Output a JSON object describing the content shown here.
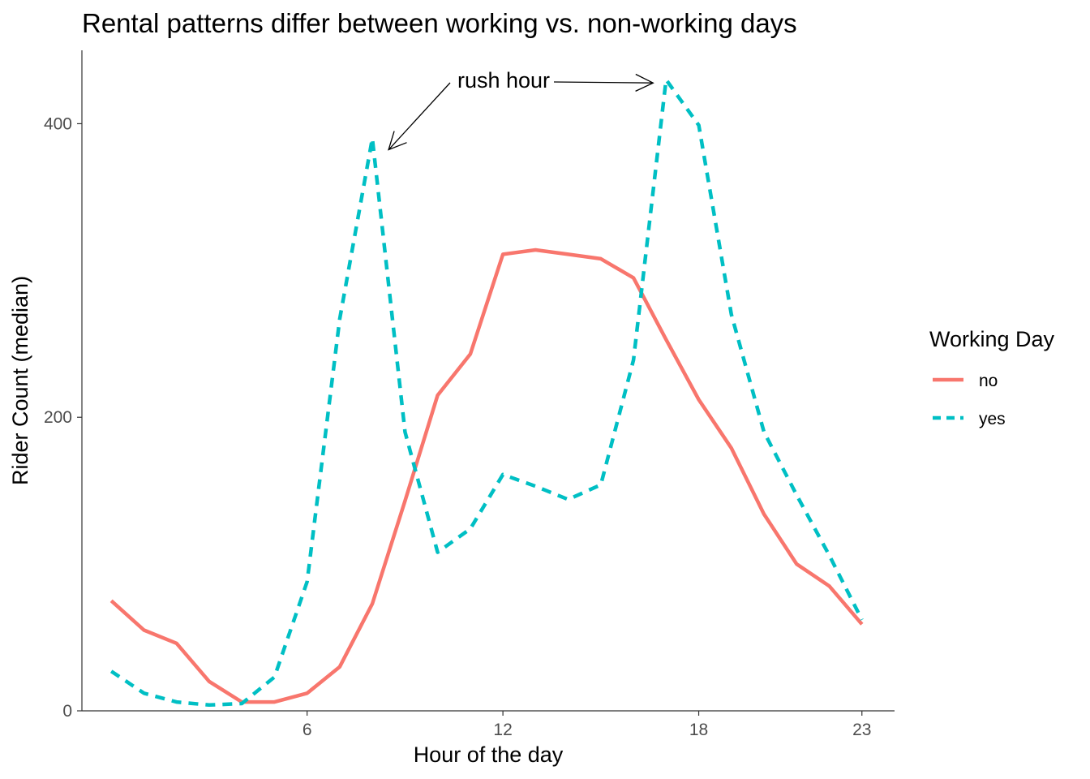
{
  "chart_data": {
    "type": "line",
    "title": "Rental patterns differ between working vs. non-working days",
    "xlabel": "Hour of the day",
    "ylabel": "Rider Count (median)",
    "x": [
      0,
      1,
      2,
      3,
      4,
      5,
      6,
      7,
      8,
      9,
      10,
      11,
      12,
      13,
      14,
      15,
      16,
      17,
      18,
      19,
      20,
      21,
      22,
      23
    ],
    "xlim": [
      -0.9,
      24.0
    ],
    "ylim": [
      0,
      450
    ],
    "x_ticks": [
      6,
      12,
      18,
      23
    ],
    "y_ticks": [
      0,
      200,
      400
    ],
    "grid": false,
    "series": [
      {
        "name": "no",
        "color": "#F8766D",
        "line_style": "solid",
        "values": [
          75,
          55,
          46,
          20,
          6,
          6,
          12,
          30,
          73,
          143,
          215,
          243,
          311,
          314,
          311,
          308,
          295,
          253,
          212,
          179,
          134,
          100,
          85,
          59
        ]
      },
      {
        "name": "yes",
        "color": "#00BFC4",
        "line_style": "dashed",
        "values": [
          27,
          12,
          6,
          4,
          5,
          23,
          88,
          267,
          390,
          190,
          108,
          124,
          161,
          153,
          144,
          154,
          239,
          430,
          399,
          270,
          190,
          147,
          106,
          62
        ]
      }
    ],
    "legend": {
      "title": "Working Day",
      "position": "right",
      "entries": [
        "no",
        "yes"
      ]
    },
    "annotations": [
      {
        "text": "rush hour",
        "points_to": [
          {
            "x": 8,
            "y": 390
          },
          {
            "x": 17,
            "y": 430
          }
        ]
      }
    ]
  }
}
